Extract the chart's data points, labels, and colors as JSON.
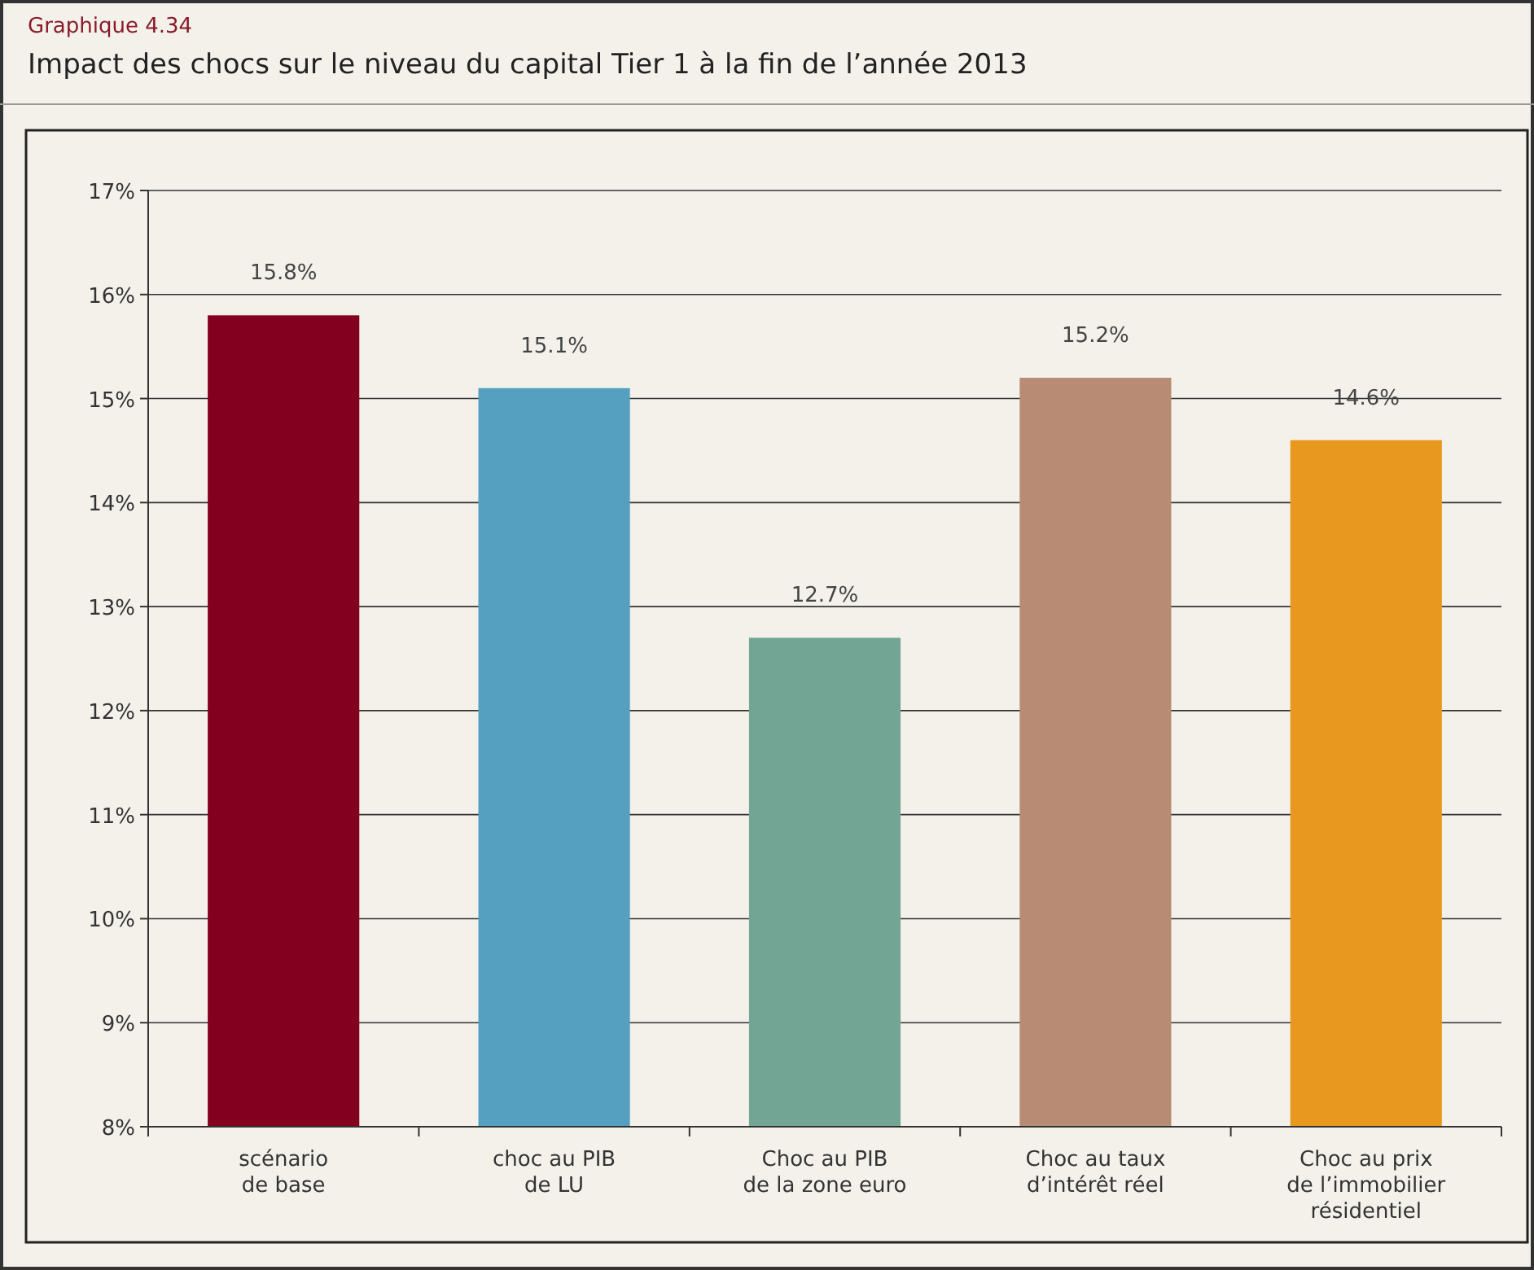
{
  "chart_data": {
    "type": "bar",
    "subtitle": "Graphique 4.34",
    "title": "Impact des chocs sur le niveau du capital Tier 1 à la fin de l’année 2013",
    "categories": [
      "scénario\nde base",
      "choc au PIB\nde LU",
      "Choc au PIB\nde la zone euro",
      "Choc au taux\nd’intérêt réel",
      "Choc au prix\nde l’immobilier\nrésidentiel"
    ],
    "values": [
      15.8,
      15.1,
      12.7,
      15.2,
      14.6
    ],
    "colors": [
      "#84001f",
      "#55a0c0",
      "#72a594",
      "#b88c74",
      "#e8981e"
    ],
    "value_labels": [
      "15.8%",
      "15.1%",
      "12.7%",
      "15.2%",
      "14.6%"
    ],
    "ylim": [
      8,
      17
    ],
    "yticks": [
      {
        "value": 8,
        "label": "8%"
      },
      {
        "value": 9,
        "label": "9%"
      },
      {
        "value": 10,
        "label": "10%"
      },
      {
        "value": 11,
        "label": "11%"
      },
      {
        "value": 12,
        "label": "12%"
      },
      {
        "value": 13,
        "label": "13%"
      },
      {
        "value": 14,
        "label": "14%"
      },
      {
        "value": 15,
        "label": "15%"
      },
      {
        "value": 16,
        "label": "16%"
      },
      {
        "value": 17,
        "label": "17%"
      }
    ],
    "grid": "y"
  }
}
